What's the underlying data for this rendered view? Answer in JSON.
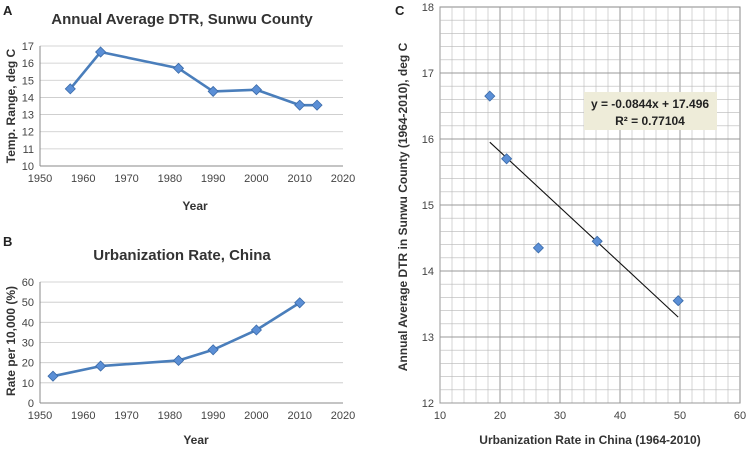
{
  "colors": {
    "series": "#4a7ebb",
    "marker": "#5b8fd6",
    "grid": "#b8b8b8",
    "axis": "#888888",
    "annotation_bg": "#eeecd9",
    "text": "#333333"
  },
  "chart_data": [
    {
      "id": "A",
      "panel_label": "A",
      "type": "line",
      "title": "Annual Average DTR, Sunwu County",
      "xlabel": "Year",
      "ylabel": "Temp. Range, deg C",
      "x": [
        1957,
        1964,
        1982,
        1990,
        2000,
        2010,
        2014
      ],
      "y": [
        14.5,
        16.65,
        15.7,
        14.35,
        14.45,
        13.55,
        13.55
      ],
      "xlim": [
        1950,
        2020
      ],
      "ylim": [
        10,
        17
      ],
      "xticks": [
        1950,
        1960,
        1970,
        1980,
        1990,
        2000,
        2010,
        2020
      ],
      "yticks": [
        10,
        11,
        12,
        13,
        14,
        15,
        16,
        17
      ],
      "grid": "horizontal"
    },
    {
      "id": "B",
      "panel_label": "B",
      "type": "line",
      "title": "Urbanization Rate, China",
      "xlabel": "Year",
      "ylabel": "Rate per 10,000 (%)",
      "x": [
        1953,
        1964,
        1982,
        1990,
        2000,
        2010
      ],
      "y": [
        13.3,
        18.3,
        21.1,
        26.4,
        36.2,
        49.7
      ],
      "xlim": [
        1950,
        2020
      ],
      "ylim": [
        0,
        60
      ],
      "xticks": [
        1950,
        1960,
        1970,
        1980,
        1990,
        2000,
        2010,
        2020
      ],
      "yticks": [
        0,
        10,
        20,
        30,
        40,
        50,
        60
      ],
      "grid": "horizontal"
    },
    {
      "id": "C",
      "panel_label": "C",
      "type": "scatter",
      "xlabel": "Urbanization Rate in China (1964-2010)",
      "ylabel": "Annual Average DTR in Sunwu County (1964-2010), deg C",
      "x": [
        18.3,
        21.1,
        26.4,
        36.2,
        49.7
      ],
      "y": [
        16.65,
        15.7,
        14.35,
        14.45,
        13.55
      ],
      "xlim": [
        10,
        60
      ],
      "ylim": [
        12,
        18
      ],
      "xticks": [
        10,
        20,
        30,
        40,
        50,
        60
      ],
      "yticks": [
        12,
        13,
        14,
        15,
        16,
        17,
        18
      ],
      "grid": "both-minor",
      "trendline": {
        "slope": -0.0844,
        "intercept": 17.496,
        "x_range": [
          18.3,
          49.7
        ]
      },
      "equation": "y = -0.0844x + 17.496",
      "r_squared": "R² = 0.77104"
    }
  ]
}
